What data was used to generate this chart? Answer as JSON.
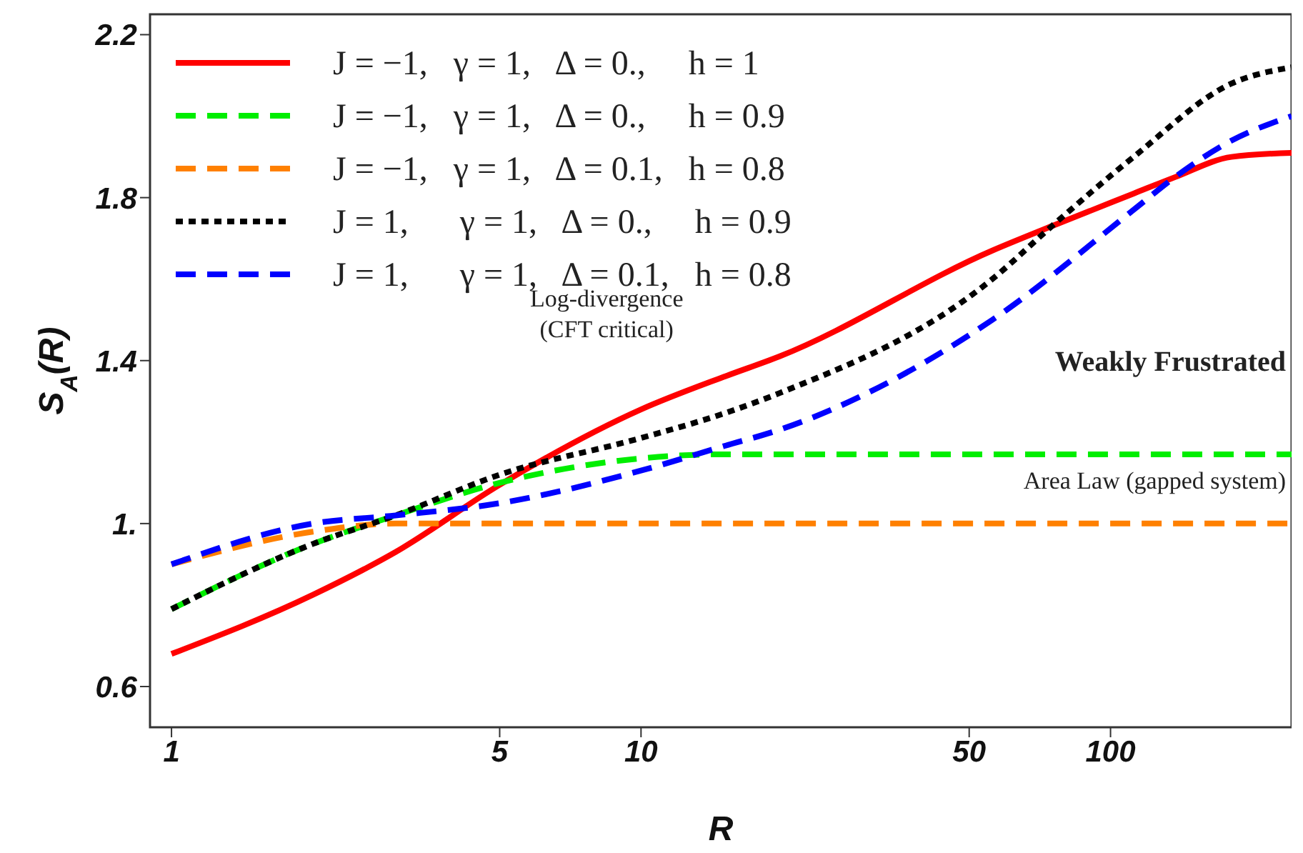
{
  "chart_data": {
    "type": "line",
    "xlabel": "R",
    "ylabel": "S$_{A}$(R)",
    "log": "x",
    "xlim": [
      0.9,
      243
    ],
    "ylim": [
      0.5,
      2.25
    ],
    "xticks": [
      1,
      5,
      10,
      50,
      100
    ],
    "yticks": [
      0.6,
      {
        "value": 1,
        "label": "1."
      },
      1.4,
      1.8,
      2.2
    ],
    "legend": "top left",
    "marker": "none",
    "annotations": [
      "Log-divergence\n(CFT critical)",
      "Weakly Frustrated",
      "Area Law (gapped system)"
    ],
    "series": [
      {
        "name": "J = −1,   γ = 1,   Δ = 0.,     h = 1",
        "color": "#ff0000",
        "line_style": "solid",
        "x": [
          1,
          2,
          3,
          5,
          10,
          15,
          19.7,
          56,
          75,
          112,
          137,
          181,
          243
        ],
        "values": [
          0.68,
          0.825,
          0.93,
          1.095,
          1.28,
          1.36,
          1.41,
          1.67,
          1.73,
          1.81,
          1.85,
          1.9,
          1.91
        ]
      },
      {
        "name": "J = −1,   γ = 1,   Δ = 0.,     h = 0.9",
        "color": "#00ee00",
        "line_style": "dashed",
        "x": [
          1,
          2,
          3,
          5,
          10,
          15,
          20,
          243
        ],
        "values": [
          0.79,
          0.95,
          1.02,
          1.1,
          1.16,
          1.17,
          1.17,
          1.17
        ]
      },
      {
        "name": "J = −1,   γ = 1,   Δ = 0.1,   h = 0.8",
        "color": "#ff8000",
        "line_style": "dashed",
        "x": [
          1,
          2,
          3,
          4,
          243
        ],
        "values": [
          0.9,
          0.98,
          1.0,
          1.0,
          1.0
        ]
      },
      {
        "name": "J = 1,      γ = 1,   Δ = 0.,     h = 0.9",
        "color": "#000000",
        "line_style": "dotted",
        "x": [
          1,
          2,
          3,
          5,
          10,
          15,
          19.7,
          56,
          75,
          112,
          181,
          243
        ],
        "values": [
          0.79,
          0.95,
          1.02,
          1.12,
          1.21,
          1.27,
          1.32,
          1.6,
          1.73,
          1.9,
          2.08,
          2.12
        ]
      },
      {
        "name": "J = 1,      γ = 1,   Δ = 0.1,   h = 0.8",
        "color": "#0000ff",
        "line_style": "dashed",
        "x": [
          1,
          2,
          3,
          5,
          10,
          15,
          19.7,
          56,
          112,
          137,
          181,
          243
        ],
        "values": [
          0.9,
          1.0,
          1.02,
          1.05,
          1.13,
          1.19,
          1.23,
          1.5,
          1.77,
          1.85,
          1.94,
          2.0
        ]
      }
    ]
  }
}
